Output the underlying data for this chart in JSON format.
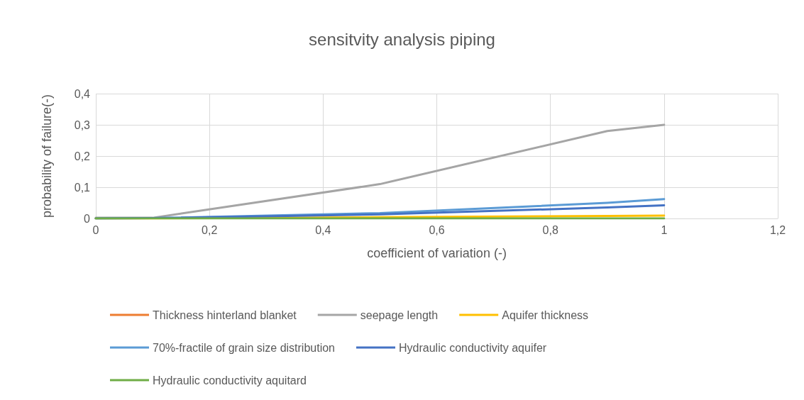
{
  "chart_data": {
    "type": "line",
    "title": "sensitvity analysis piping",
    "xlabel": "coefficient of variation (-)",
    "ylabel": "probability of failure(-)",
    "x": [
      0,
      0.1,
      0.5,
      0.9,
      1
    ],
    "series": [
      {
        "name": "Thickness hinterland blanket",
        "color": "#ed7d31",
        "values": [
          null,
          null,
          null,
          null,
          null
        ]
      },
      {
        "name": "seepage length",
        "color": "#a5a5a5",
        "values": [
          0.002,
          0.002,
          0.11,
          0.28,
          0.3
        ]
      },
      {
        "name": "Aquifer thickness",
        "color": "#ffc000",
        "values": [
          0,
          0,
          0.004,
          0.008,
          0.009
        ]
      },
      {
        "name": "70%-fractile of grain size distribution",
        "color": "#5b9bd5",
        "values": [
          0,
          0.001,
          0.017,
          0.05,
          0.062
        ]
      },
      {
        "name": "Hydraulic conductivity aquifer",
        "color": "#4472c4",
        "values": [
          0,
          0.001,
          0.013,
          0.035,
          0.042
        ]
      },
      {
        "name": "Hydraulic conductivity aquitard",
        "color": "#70ad47",
        "values": [
          0,
          0,
          0,
          0,
          0
        ]
      }
    ],
    "xlim": [
      0,
      1.2
    ],
    "xticks": [
      0,
      {
        "value": 0.2,
        "label": "0,2"
      },
      {
        "value": 0.4,
        "label": "0,4"
      },
      {
        "value": 0.6,
        "label": "0,6"
      },
      {
        "value": 0.8,
        "label": "0,8"
      },
      1,
      {
        "value": 1.2,
        "label": "1,2"
      }
    ],
    "ylim": [
      0,
      0.4
    ],
    "yticks": [
      0,
      {
        "value": 0.1,
        "label": "0,1"
      },
      {
        "value": 0.2,
        "label": "0,2"
      },
      {
        "value": 0.3,
        "label": "0,3"
      },
      {
        "value": 0.4,
        "label": "0,4"
      }
    ],
    "grid": true,
    "legend": "bottom",
    "marker": "none",
    "line_style": "solid"
  }
}
